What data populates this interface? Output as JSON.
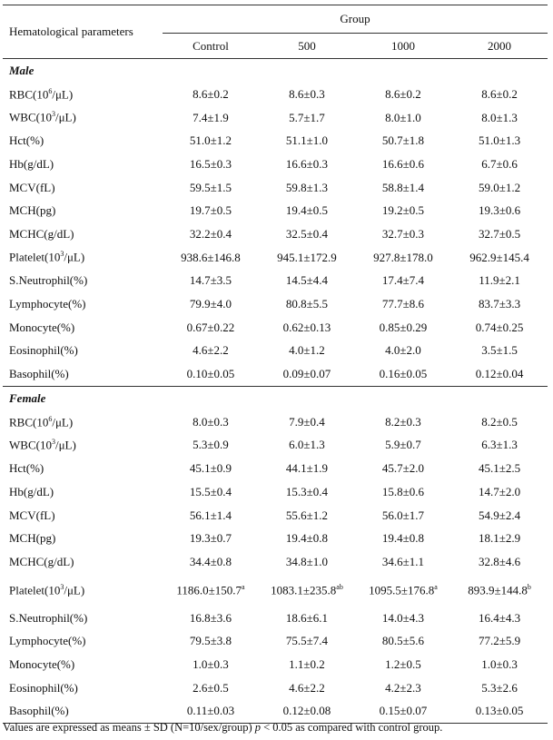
{
  "table": {
    "header": {
      "parameter": "Hematological parameters",
      "group": "Group",
      "columns": [
        "Control",
        "500",
        "1000",
        "2000"
      ]
    },
    "sections": [
      {
        "label": "Male",
        "rows": [
          {
            "parameter": [
              "RBC(10",
              "6",
              "/μL)"
            ],
            "values": [
              "8.6±0.2",
              "8.6±0.3",
              "8.6±0.2",
              "8.6±0.2"
            ]
          },
          {
            "parameter": [
              "WBC(10",
              "3",
              "/μL)"
            ],
            "values": [
              "7.4±1.9",
              "5.7±1.7",
              "8.0±1.0",
              "8.0±1.3"
            ]
          },
          {
            "parameter": "Hct(%)",
            "values": [
              "51.0±1.2",
              "51.1±1.0",
              "50.7±1.8",
              "51.0±1.3"
            ]
          },
          {
            "parameter": "Hb(g/dL)",
            "values": [
              "16.5±0.3",
              "16.6±0.3",
              "16.6±0.6",
              "6.7±0.6"
            ]
          },
          {
            "parameter": "MCV(fL)",
            "values": [
              "59.5±1.5",
              "59.8±1.3",
              "58.8±1.4",
              "59.0±1.2"
            ]
          },
          {
            "parameter": "MCH(pg)",
            "values": [
              "19.7±0.5",
              "19.4±0.5",
              "19.2±0.5",
              "19.3±0.6"
            ]
          },
          {
            "parameter": "MCHC(g/dL)",
            "values": [
              "32.2±0.4",
              "32.5±0.4",
              "32.7±0.3",
              "32.7±0.5"
            ]
          },
          {
            "parameter": [
              "Platelet(10",
              "3",
              "/μL)"
            ],
            "values": [
              "938.6±146.8",
              "945.1±172.9",
              "927.8±178.0",
              "962.9±145.4"
            ]
          },
          {
            "parameter": "S.Neutrophil(%)",
            "values": [
              "14.7±3.5",
              "14.5±4.4",
              "17.4±7.4",
              "11.9±2.1"
            ]
          },
          {
            "parameter": "Lymphocyte(%)",
            "values": [
              "79.9±4.0",
              "80.8±5.5",
              "77.7±8.6",
              "83.7±3.3"
            ]
          },
          {
            "parameter": "Monocyte(%)",
            "values": [
              "0.67±0.22",
              "0.62±0.13",
              "0.85±0.29",
              "0.74±0.25"
            ]
          },
          {
            "parameter": "Eosinophil(%)",
            "values": [
              "4.6±2.2",
              "4.0±1.2",
              "4.0±2.0",
              "3.5±1.5"
            ]
          },
          {
            "parameter": "Basophil(%)",
            "values": [
              "0.10±0.05",
              "0.09±0.07",
              "0.16±0.05",
              "0.12±0.04"
            ]
          }
        ]
      },
      {
        "label": "Female",
        "rows": [
          {
            "parameter": [
              "RBC(10",
              "6",
              "/μL)"
            ],
            "values": [
              "8.0±0.3",
              "7.9±0.4",
              "8.2±0.3",
              "8.2±0.5"
            ]
          },
          {
            "parameter": [
              "WBC(10",
              "3",
              "/μL)"
            ],
            "values": [
              "5.3±0.9",
              "6.0±1.3",
              "5.9±0.7",
              "6.3±1.3"
            ]
          },
          {
            "parameter": "Hct(%)",
            "values": [
              "45.1±0.9",
              "44.1±1.9",
              "45.7±2.0",
              "45.1±2.5"
            ]
          },
          {
            "parameter": "Hb(g/dL)",
            "values": [
              "15.5±0.4",
              "15.3±0.4",
              "15.8±0.6",
              "14.7±2.0"
            ]
          },
          {
            "parameter": "MCV(fL)",
            "values": [
              "56.1±1.4",
              "55.6±1.2",
              "56.0±1.7",
              "54.9±2.4"
            ]
          },
          {
            "parameter": "MCH(pg)",
            "values": [
              "19.3±0.7",
              "19.4±0.8",
              "19.4±0.8",
              "18.1±2.9"
            ]
          },
          {
            "parameter": "MCHC(g/dL)",
            "values": [
              "34.4±0.8",
              "34.8±1.0",
              "34.6±1.1",
              "32.8±4.6"
            ]
          },
          {
            "parameter": [
              "Platelet(10",
              "3",
              "/μL)"
            ],
            "values": [
              [
                "1186.0±150.7",
                "a"
              ],
              [
                "1083.1±235.8",
                "ab"
              ],
              [
                "1095.5±176.8",
                "a"
              ],
              [
                "893.9±144.8",
                "b"
              ]
            ]
          },
          {
            "parameter": "S.Neutrophil(%)",
            "values": [
              "16.8±3.6",
              "18.6±6.1",
              "14.0±4.3",
              "16.4±4.3"
            ]
          },
          {
            "parameter": "Lymphocyte(%)",
            "values": [
              "79.5±3.8",
              "75.5±7.4",
              "80.5±5.6",
              "77.2±5.9"
            ]
          },
          {
            "parameter": "Monocyte(%)",
            "values": [
              "1.0±0.3",
              "1.1±0.2",
              "1.2±0.5",
              "1.0±0.3"
            ]
          },
          {
            "parameter": "Eosinophil(%)",
            "values": [
              "2.6±0.5",
              "4.6±2.2",
              "4.2±2.3",
              "5.3±2.6"
            ]
          },
          {
            "parameter": "Basophil(%)",
            "values": [
              "0.11±0.03",
              "0.12±0.08",
              "0.15±0.07",
              "0.13±0.05"
            ]
          }
        ]
      }
    ]
  },
  "footnote": [
    "Values are expressed as means ± SD (N=10/sex/group) ",
    "p",
    " < 0.05 as compared with control group."
  ]
}
